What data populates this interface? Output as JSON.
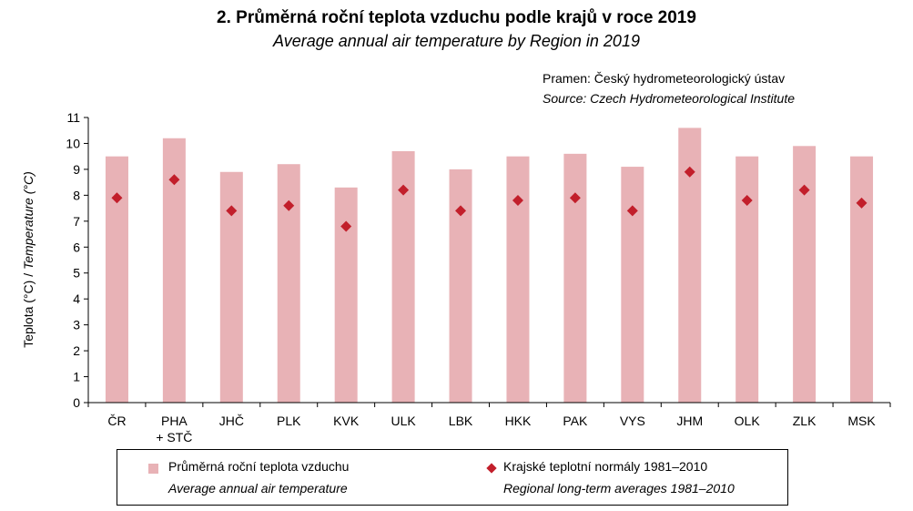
{
  "header": {
    "title": "2. Průměrná roční teplota vzduchu podle krajů v roce 2019",
    "subtitle": "Average annual air temperature by Region in 2019",
    "source_cz": "Pramen: Český hydrometeorologický ústav",
    "source_en": "Source: Czech Hydrometeorological Institute"
  },
  "colors": {
    "bar": "#e8b2b6",
    "marker": "#c21f2b",
    "axis": "#000000"
  },
  "chart_data": {
    "type": "bar",
    "title": "2. Průměrná roční teplota vzduchu podle krajů v roce 2019",
    "ylabel_cz": "Teplota (°C) / ",
    "ylabel_en": "Temperature (°C)",
    "ylim": [
      0,
      11
    ],
    "yticks": [
      0,
      1,
      2,
      3,
      4,
      5,
      6,
      7,
      8,
      9,
      10,
      11
    ],
    "categories": [
      [
        "ČR"
      ],
      [
        "PHA",
        "+ STČ"
      ],
      [
        "JHČ"
      ],
      [
        "PLK"
      ],
      [
        "KVK"
      ],
      [
        "ULK"
      ],
      [
        "LBK"
      ],
      [
        "HKK"
      ],
      [
        "PAK"
      ],
      [
        "VYS"
      ],
      [
        "JHM"
      ],
      [
        "OLK"
      ],
      [
        "ZLK"
      ],
      [
        "MSK"
      ]
    ],
    "series": [
      {
        "name": "Průměrná roční teplota vzduchu",
        "name_en": "Average annual air temperature",
        "kind": "bar",
        "values": [
          9.5,
          10.2,
          8.9,
          9.2,
          8.3,
          9.7,
          9.0,
          9.5,
          9.6,
          9.1,
          10.6,
          9.5,
          9.9,
          9.5
        ]
      },
      {
        "name": "Krajské teplotní normály 1981–2010",
        "name_en": "Regional long-term averages 1981–2010",
        "kind": "marker",
        "values": [
          7.9,
          8.6,
          7.4,
          7.6,
          6.8,
          8.2,
          7.4,
          7.8,
          7.9,
          7.4,
          8.9,
          7.8,
          8.2,
          7.7
        ]
      }
    ],
    "legend_position": "bottom"
  }
}
